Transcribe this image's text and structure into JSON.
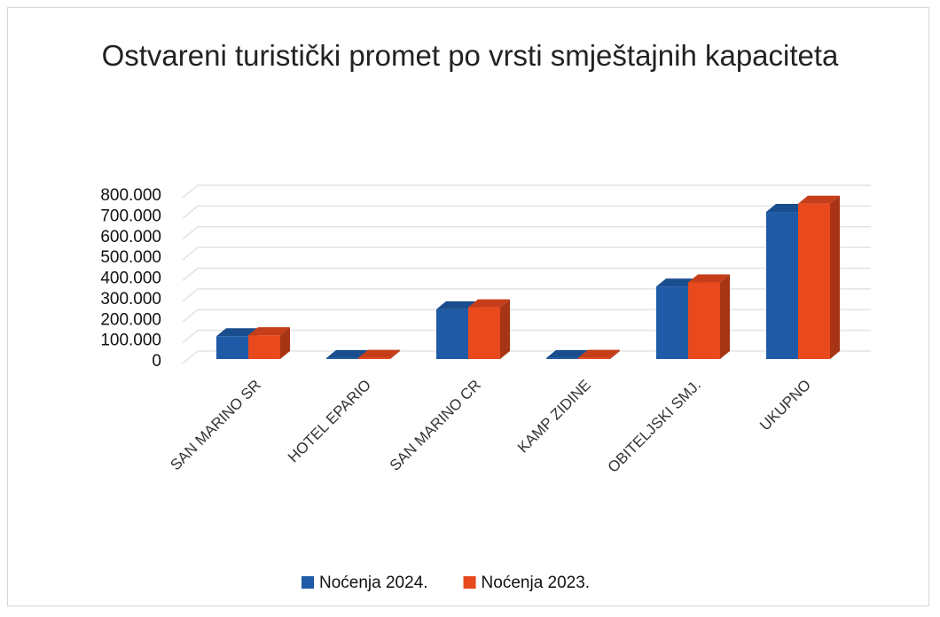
{
  "chart_data": {
    "type": "bar3d",
    "title": "Ostvareni turistički promet po vrsti smještajnih kapaciteta",
    "categories": [
      "SAN MARINO SR",
      "HOTEL EPARIO",
      "SAN MARINO CR",
      "KAMP ZIDINE",
      "OBITELJSKI SMJ.",
      "UKUPNO"
    ],
    "series": [
      {
        "name": "Noćenja 2024.",
        "color": "#1f5aa6",
        "values": [
          110000,
          5000,
          240000,
          5000,
          350000,
          710000
        ]
      },
      {
        "name": "Noćenja 2023.",
        "color": "#e8491d",
        "values": [
          115000,
          6000,
          250000,
          6000,
          370000,
          750000
        ]
      }
    ],
    "ylim": [
      0,
      800000
    ],
    "yticks": [
      0,
      {
        "value": 100000,
        "label": "100.000"
      },
      {
        "value": 200000,
        "label": "200.000"
      },
      {
        "value": 300000,
        "label": "300.000"
      },
      {
        "value": 400000,
        "label": "400.000"
      },
      {
        "value": 500000,
        "label": "500.000"
      },
      {
        "value": 600000,
        "label": "600.000"
      },
      {
        "value": 700000,
        "label": "700.000"
      },
      {
        "value": 800000,
        "label": "800.000"
      }
    ],
    "grid": true,
    "legend": "bottom"
  }
}
